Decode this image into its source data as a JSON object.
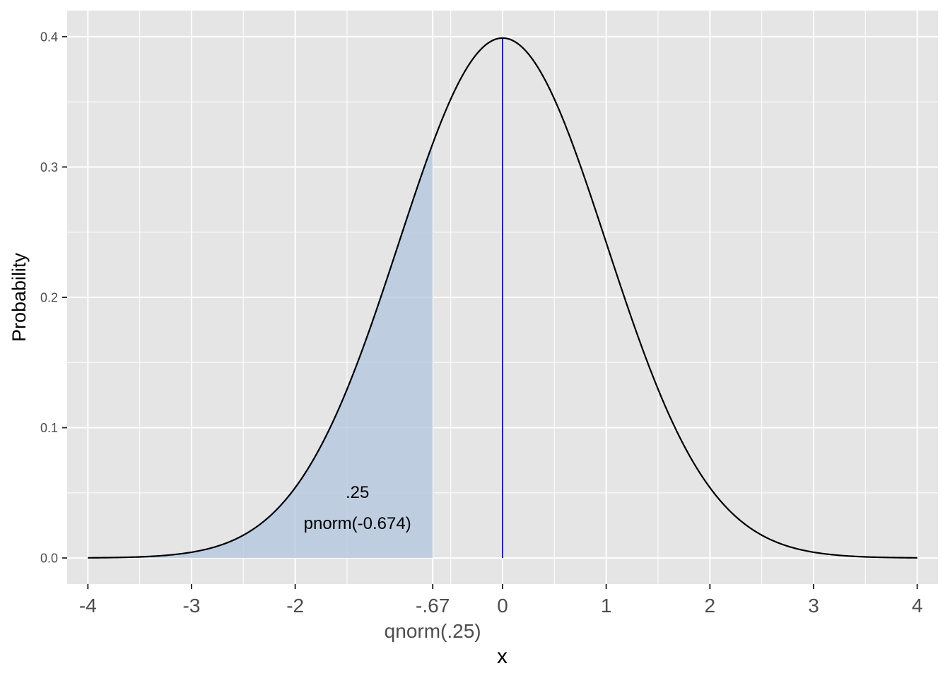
{
  "chart_data": {
    "type": "area",
    "title": "",
    "xlabel": "x",
    "ylabel": "Probability",
    "xlim": [
      -4.2,
      4.2
    ],
    "ylim": [
      -0.02,
      0.42
    ],
    "grid": true,
    "x_ticks": [
      {
        "value": -4,
        "label": "-4"
      },
      {
        "value": -3,
        "label": "-3"
      },
      {
        "value": -2,
        "label": "-2"
      },
      {
        "value": -0.674,
        "label": "-.67"
      },
      {
        "value": 0,
        "label": "0"
      },
      {
        "value": 1,
        "label": "1"
      },
      {
        "value": 2,
        "label": "2"
      },
      {
        "value": 3,
        "label": "3"
      },
      {
        "value": 4,
        "label": "4"
      }
    ],
    "x_minor_grid": [
      -3.5,
      -2.5,
      -1.5,
      -0.5,
      0.5,
      1.5,
      2.5,
      3.5
    ],
    "y_ticks": [
      {
        "value": 0.0,
        "label": "0.0"
      },
      {
        "value": 0.1,
        "label": "0.1"
      },
      {
        "value": 0.2,
        "label": "0.2"
      },
      {
        "value": 0.3,
        "label": "0.3"
      },
      {
        "value": 0.4,
        "label": "0.4"
      }
    ],
    "y_minor_grid": [
      0.05,
      0.15,
      0.25,
      0.35
    ],
    "curve": {
      "distribution": "normal density",
      "mean": 0,
      "sd": 1,
      "x_range": [
        -4,
        4
      ],
      "color": "#000000"
    },
    "shaded_region": {
      "from": -4,
      "to": -0.674,
      "fill": "#b0c4de",
      "area": 0.25
    },
    "vline": {
      "x": 0,
      "color": "#0000ff"
    },
    "annotations": {
      "area_label": ".25",
      "area_expr": "pnorm(-0.674)",
      "quantile_expr": "qnorm(.25)"
    },
    "annotation_positions": {
      "area_label": {
        "x": -1.4,
        "y": 0.0505
      },
      "area_expr": {
        "x": -1.4,
        "y": 0.0265
      },
      "quantile_expr": {
        "x": -0.674
      }
    },
    "colors": {
      "panel_background": "#e5e5e5",
      "grid": "#ffffff",
      "tick_text": "#4d4d4d"
    }
  }
}
